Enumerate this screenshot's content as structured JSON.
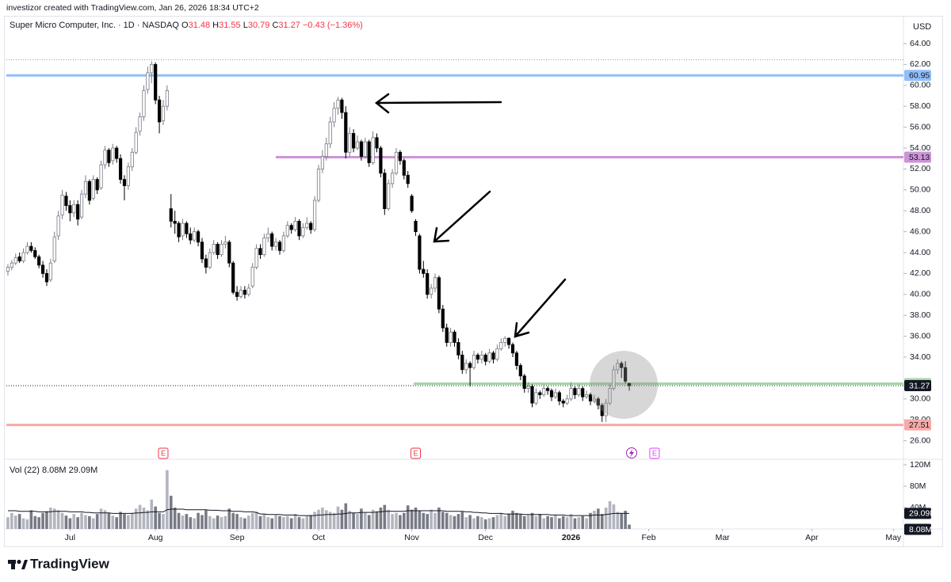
{
  "chart_data": {
    "type": "candlestick",
    "header": "investizor created with TradingView.com, Jan 26, 2026 18:34 UTC+2",
    "currency": "USD",
    "legend": {
      "symbol": "Super Micro Computer, Inc. · 1D · NASDAQ",
      "fields": [
        "O",
        "H",
        "L",
        "C"
      ],
      "change": {
        "value": -0.43,
        "label": "−0.43"
      },
      "change_pct": {
        "value": -1.36,
        "label": "(−1.36%)"
      }
    },
    "up_color": "#ffffff",
    "down_color": "#000000",
    "candles": [
      [
        42.2,
        42.9,
        41.8,
        42.6
      ],
      [
        42.6,
        43.3,
        42.3,
        43.0
      ],
      [
        43.0,
        43.9,
        42.8,
        43.5
      ],
      [
        43.6,
        44.0,
        43.0,
        43.2
      ],
      [
        43.2,
        44.4,
        43.0,
        44.0
      ],
      [
        44.0,
        45.0,
        43.8,
        44.6
      ],
      [
        44.6,
        45.0,
        44.0,
        44.2
      ],
      [
        44.2,
        44.5,
        43.4,
        43.6
      ],
      [
        43.6,
        43.8,
        42.5,
        42.8
      ],
      [
        42.8,
        43.2,
        41.6,
        42.0
      ],
      [
        42.0,
        42.4,
        40.8,
        41.2
      ],
      [
        41.4,
        43.4,
        41.2,
        43.0
      ],
      [
        43.2,
        46.0,
        43.0,
        45.5
      ],
      [
        45.6,
        48.0,
        45.2,
        47.5
      ],
      [
        47.6,
        50.0,
        47.2,
        49.5
      ],
      [
        49.4,
        49.8,
        48.0,
        48.5
      ],
      [
        48.5,
        49.0,
        47.0,
        47.8
      ],
      [
        47.8,
        49.0,
        47.4,
        48.6
      ],
      [
        48.6,
        49.0,
        46.6,
        47.2
      ],
      [
        47.4,
        50.0,
        47.2,
        49.6
      ],
      [
        49.6,
        51.4,
        49.2,
        50.8
      ],
      [
        50.8,
        51.0,
        48.6,
        49.0
      ],
      [
        49.2,
        51.4,
        49.0,
        51.0
      ],
      [
        51.0,
        51.2,
        49.6,
        50.0
      ],
      [
        50.2,
        52.8,
        50.0,
        52.4
      ],
      [
        52.4,
        54.2,
        52.0,
        53.8
      ],
      [
        53.8,
        54.0,
        52.2,
        52.6
      ],
      [
        52.8,
        54.4,
        52.4,
        54.0
      ],
      [
        54.0,
        54.2,
        52.6,
        53.0
      ],
      [
        53.0,
        53.4,
        50.6,
        51.0
      ],
      [
        51.0,
        51.4,
        49.0,
        50.4
      ],
      [
        50.4,
        52.6,
        50.0,
        52.2
      ],
      [
        52.2,
        54.0,
        51.8,
        53.6
      ],
      [
        53.6,
        56.0,
        53.4,
        55.5
      ],
      [
        55.6,
        57.4,
        55.2,
        57.0
      ],
      [
        57.0,
        60.0,
        56.6,
        59.5
      ],
      [
        59.6,
        61.8,
        59.2,
        61.2
      ],
      [
        61.2,
        62.3,
        60.2,
        62.0
      ],
      [
        62.0,
        62.2,
        58.2,
        58.6
      ],
      [
        58.6,
        59.0,
        55.4,
        56.5
      ],
      [
        56.6,
        58.6,
        56.2,
        58.0
      ],
      [
        58.0,
        60.0,
        57.6,
        59.5
      ],
      [
        48.2,
        49.6,
        46.4,
        47.0
      ],
      [
        47.0,
        48.0,
        45.8,
        46.8
      ],
      [
        46.8,
        47.0,
        45.0,
        45.5
      ],
      [
        45.6,
        47.2,
        45.2,
        46.8
      ],
      [
        46.8,
        47.0,
        45.4,
        45.8
      ],
      [
        45.8,
        46.4,
        44.8,
        45.2
      ],
      [
        45.2,
        46.4,
        45.0,
        46.0
      ],
      [
        46.0,
        46.2,
        44.6,
        45.0
      ],
      [
        45.0,
        45.4,
        43.0,
        43.4
      ],
      [
        43.4,
        43.8,
        42.0,
        42.6
      ],
      [
        42.6,
        44.4,
        42.4,
        44.0
      ],
      [
        44.0,
        45.2,
        43.8,
        44.8
      ],
      [
        44.8,
        45.0,
        43.4,
        43.8
      ],
      [
        43.8,
        45.2,
        43.6,
        44.8
      ],
      [
        44.8,
        45.6,
        44.4,
        45.0
      ],
      [
        45.0,
        45.2,
        42.6,
        43.0
      ],
      [
        43.0,
        43.2,
        40.0,
        40.2
      ],
      [
        40.2,
        40.8,
        39.4,
        39.8
      ],
      [
        39.8,
        40.8,
        39.6,
        40.4
      ],
      [
        40.4,
        40.8,
        39.6,
        40.0
      ],
      [
        40.0,
        41.0,
        39.8,
        40.6
      ],
      [
        40.8,
        43.0,
        40.6,
        42.6
      ],
      [
        42.6,
        44.8,
        42.4,
        44.4
      ],
      [
        44.4,
        44.8,
        43.4,
        43.8
      ],
      [
        43.8,
        45.8,
        43.6,
        45.4
      ],
      [
        45.4,
        46.4,
        45.0,
        45.8
      ],
      [
        45.8,
        46.0,
        44.2,
        44.6
      ],
      [
        44.6,
        45.4,
        44.2,
        45.0
      ],
      [
        45.0,
        45.2,
        43.8,
        44.2
      ],
      [
        44.2,
        46.0,
        44.0,
        45.6
      ],
      [
        45.6,
        47.0,
        45.4,
        46.6
      ],
      [
        46.6,
        46.8,
        45.8,
        46.2
      ],
      [
        46.2,
        47.4,
        46.0,
        47.0
      ],
      [
        47.0,
        47.2,
        45.2,
        45.6
      ],
      [
        45.6,
        46.8,
        45.4,
        46.4
      ],
      [
        46.4,
        47.4,
        46.2,
        46.8
      ],
      [
        46.8,
        47.0,
        45.8,
        46.2
      ],
      [
        46.2,
        49.4,
        46.0,
        49.0
      ],
      [
        49.0,
        52.4,
        48.8,
        52.0
      ],
      [
        52.0,
        53.8,
        51.6,
        53.2
      ],
      [
        53.2,
        55.0,
        52.8,
        54.4
      ],
      [
        54.4,
        57.0,
        54.0,
        56.5
      ],
      [
        56.5,
        58.4,
        56.0,
        57.8
      ],
      [
        57.8,
        58.9,
        57.2,
        58.6
      ],
      [
        58.6,
        58.8,
        56.8,
        57.4
      ],
      [
        57.4,
        58.0,
        53.0,
        53.6
      ],
      [
        53.6,
        56.0,
        53.2,
        55.4
      ],
      [
        55.4,
        55.8,
        53.6,
        54.0
      ],
      [
        54.0,
        55.2,
        53.8,
        54.6
      ],
      [
        54.6,
        54.8,
        52.8,
        53.2
      ],
      [
        53.2,
        55.0,
        53.0,
        54.6
      ],
      [
        54.6,
        54.8,
        52.2,
        52.6
      ],
      [
        52.6,
        55.6,
        52.4,
        55.0
      ],
      [
        55.0,
        55.4,
        53.6,
        54.0
      ],
      [
        54.0,
        54.2,
        51.2,
        51.6
      ],
      [
        51.6,
        52.0,
        47.6,
        48.2
      ],
      [
        48.2,
        51.0,
        48.0,
        50.6
      ],
      [
        50.6,
        52.0,
        50.2,
        51.6
      ],
      [
        51.6,
        54.0,
        51.4,
        53.6
      ],
      [
        53.6,
        53.8,
        52.4,
        52.8
      ],
      [
        52.8,
        53.0,
        51.0,
        51.4
      ],
      [
        51.4,
        51.8,
        50.2,
        50.6
      ],
      [
        49.4,
        49.6,
        47.8,
        48.0
      ],
      [
        47.0,
        47.2,
        45.6,
        46.0
      ],
      [
        45.6,
        45.8,
        42.0,
        42.4
      ],
      [
        42.4,
        43.2,
        41.6,
        42.0
      ],
      [
        42.0,
        42.4,
        39.6,
        40.0
      ],
      [
        40.0,
        41.0,
        39.6,
        40.6
      ],
      [
        40.6,
        42.0,
        40.2,
        41.6
      ],
      [
        41.6,
        41.8,
        38.2,
        38.6
      ],
      [
        38.6,
        39.0,
        36.4,
        36.8
      ],
      [
        36.8,
        37.2,
        35.0,
        35.4
      ],
      [
        35.4,
        36.8,
        35.0,
        36.4
      ],
      [
        36.4,
        36.6,
        35.0,
        35.4
      ],
      [
        35.4,
        35.8,
        33.8,
        34.2
      ],
      [
        34.2,
        34.6,
        32.4,
        32.8
      ],
      [
        32.8,
        33.8,
        32.4,
        33.4
      ],
      [
        33.4,
        33.6,
        31.2,
        33.0
      ],
      [
        33.0,
        34.6,
        32.8,
        34.2
      ],
      [
        34.2,
        34.4,
        33.4,
        33.8
      ],
      [
        33.8,
        34.6,
        33.4,
        34.2
      ],
      [
        34.2,
        34.4,
        33.2,
        33.6
      ],
      [
        33.6,
        34.8,
        33.4,
        34.4
      ],
      [
        34.4,
        34.6,
        33.4,
        33.8
      ],
      [
        33.8,
        35.2,
        33.6,
        34.8
      ],
      [
        34.8,
        35.8,
        34.6,
        35.4
      ],
      [
        35.4,
        36.0,
        35.0,
        35.8
      ],
      [
        35.8,
        35.9,
        34.8,
        35.2
      ],
      [
        35.2,
        35.4,
        34.0,
        34.4
      ],
      [
        34.4,
        34.6,
        32.8,
        33.2
      ],
      [
        33.2,
        33.4,
        31.8,
        32.2
      ],
      [
        32.2,
        32.4,
        30.6,
        31.0
      ],
      [
        31.0,
        31.6,
        30.6,
        31.2
      ],
      [
        31.2,
        31.4,
        29.2,
        29.6
      ],
      [
        29.6,
        31.0,
        29.4,
        30.6
      ],
      [
        30.6,
        30.8,
        30.0,
        30.4
      ],
      [
        30.4,
        31.4,
        30.2,
        31.0
      ],
      [
        31.0,
        31.2,
        30.4,
        30.8
      ],
      [
        30.8,
        31.0,
        29.8,
        30.2
      ],
      [
        30.2,
        31.0,
        30.0,
        30.6
      ],
      [
        30.6,
        30.8,
        29.4,
        29.8
      ],
      [
        29.8,
        30.0,
        29.2,
        29.6
      ],
      [
        29.6,
        30.4,
        29.4,
        30.0
      ],
      [
        30.0,
        31.6,
        29.8,
        31.0
      ],
      [
        31.0,
        31.2,
        30.0,
        30.4
      ],
      [
        30.4,
        31.4,
        30.2,
        31.0
      ],
      [
        31.0,
        31.2,
        29.8,
        30.2
      ],
      [
        30.2,
        30.8,
        30.0,
        30.4
      ],
      [
        30.4,
        30.6,
        29.4,
        29.8
      ],
      [
        29.8,
        30.4,
        29.6,
        30.0
      ],
      [
        30.0,
        30.2,
        29.0,
        29.4
      ],
      [
        29.4,
        29.6,
        27.8,
        28.4
      ],
      [
        28.4,
        30.0,
        27.8,
        29.6
      ],
      [
        29.6,
        31.4,
        29.4,
        31.0
      ],
      [
        31.0,
        33.2,
        30.8,
        32.8
      ],
      [
        32.8,
        33.8,
        32.4,
        33.4
      ],
      [
        33.4,
        33.6,
        32.0,
        33.0
      ],
      [
        33.0,
        33.6,
        31.5,
        31.7
      ],
      [
        31.48,
        31.55,
        30.79,
        31.27
      ]
    ],
    "xlim": [
      -0.4,
      230.6
    ],
    "xticks": [
      {
        "value": 16,
        "label": "Jul"
      },
      {
        "value": 38,
        "label": "Aug"
      },
      {
        "value": 59,
        "label": "Sep"
      },
      {
        "value": 80,
        "label": "Oct"
      },
      {
        "value": 104,
        "label": "Nov"
      },
      {
        "value": 123,
        "label": "Dec"
      },
      {
        "value": 145,
        "label": "2026"
      },
      {
        "value": 165,
        "label": "Feb"
      },
      {
        "value": 184,
        "label": "Mar"
      },
      {
        "value": 207,
        "label": "Apr"
      },
      {
        "value": 228,
        "label": "May"
      }
    ],
    "ylim": [
      24.38,
      66.65
    ],
    "yticks": [
      {
        "value": 64,
        "label": "64.00"
      },
      {
        "value": 62,
        "label": "62.00"
      },
      {
        "value": 60,
        "label": "60.00"
      },
      {
        "value": 58,
        "label": "58.00"
      },
      {
        "value": 56,
        "label": "56.00"
      },
      {
        "value": 54,
        "label": "54.00"
      },
      {
        "value": 52,
        "label": "52.00"
      },
      {
        "value": 50,
        "label": "50.00"
      },
      {
        "value": 48,
        "label": "48.00"
      },
      {
        "value": 46,
        "label": "46.00"
      },
      {
        "value": 44,
        "label": "44.00"
      },
      {
        "value": 42,
        "label": "42.00"
      },
      {
        "value": 40,
        "label": "40.00"
      },
      {
        "value": 38,
        "label": "38.00"
      },
      {
        "value": 36,
        "label": "36.00"
      },
      {
        "value": 34,
        "label": "34.00"
      },
      {
        "value": 30,
        "label": "30.00"
      },
      {
        "value": 28,
        "label": "28.00"
      },
      {
        "value": 26,
        "label": "26.00"
      }
    ],
    "levels": [
      {
        "value": 60.95,
        "color": "#90bff9"
      },
      {
        "value": 53.13,
        "color": "#ce93d8"
      },
      {
        "value": 31.46,
        "color": "#a5d6a7"
      },
      {
        "value": 27.51,
        "color": "#f7a9a7"
      }
    ],
    "events": [
      {
        "x": 40,
        "label": "E",
        "color": "#f23645"
      },
      {
        "x": 105,
        "label": "E",
        "color": "#f23645"
      },
      {
        "x": 166.5,
        "label": "E",
        "color": "#e040fb"
      }
    ],
    "volume": {
      "label": "Vol (22)",
      "up_color": "#b2b5be",
      "down_color": "#787b86",
      "ma_color": "#131722",
      "values": [
        22,
        30,
        25,
        28,
        20,
        18,
        35,
        24,
        22,
        30,
        33,
        40,
        38,
        35,
        30,
        25,
        20,
        28,
        22,
        30,
        26,
        24,
        20,
        28,
        38,
        35,
        30,
        25,
        22,
        32,
        28,
        26,
        30,
        38,
        45,
        40,
        35,
        55,
        42,
        30,
        28,
        110,
        62,
        40,
        30,
        25,
        28,
        22,
        20,
        30,
        26,
        35,
        24,
        20,
        25,
        22,
        24,
        38,
        30,
        28,
        22,
        20,
        25,
        30,
        32,
        24,
        28,
        22,
        20,
        26,
        24,
        22,
        24,
        20,
        28,
        22,
        20,
        24,
        26,
        32,
        36,
        40,
        35,
        32,
        30,
        42,
        36,
        48,
        34,
        30,
        28,
        38,
        30,
        26,
        36,
        32,
        40,
        45,
        36,
        28,
        30,
        26,
        30,
        44,
        36,
        40,
        34,
        30,
        28,
        36,
        30,
        40,
        32,
        30,
        26,
        24,
        28,
        32,
        22,
        26,
        20,
        24,
        22,
        18,
        20,
        22,
        26,
        30,
        24,
        28,
        34,
        30,
        28,
        24,
        26,
        30,
        24,
        28,
        20,
        24,
        22,
        26,
        20,
        24,
        22,
        28,
        20,
        22,
        24,
        20,
        30,
        34,
        38,
        28,
        40,
        52,
        46,
        32,
        30,
        34,
        8.08
      ],
      "ma": [
        34,
        34,
        34,
        33,
        33,
        33,
        33,
        33,
        32,
        32,
        32,
        32,
        33,
        33,
        33,
        33,
        32,
        32,
        32,
        32,
        31,
        31,
        30,
        30,
        30,
        30,
        30,
        29,
        29,
        29,
        29,
        29,
        29,
        30,
        30,
        31,
        31,
        32,
        32,
        32,
        32,
        36,
        37,
        37,
        37,
        37,
        36,
        36,
        36,
        36,
        36,
        36,
        35,
        35,
        35,
        34,
        34,
        34,
        33,
        33,
        33,
        32,
        32,
        32,
        31,
        28,
        28,
        27,
        27,
        27,
        27,
        26,
        26,
        26,
        26,
        25,
        25,
        25,
        25,
        25,
        26,
        26,
        27,
        27,
        27,
        28,
        28,
        29,
        30,
        30,
        30,
        31,
        31,
        31,
        31,
        32,
        32,
        33,
        33,
        33,
        33,
        33,
        33,
        34,
        34,
        34,
        34,
        34,
        34,
        34,
        34,
        34,
        34,
        33,
        33,
        33,
        33,
        33,
        32,
        32,
        31,
        31,
        30,
        30,
        29,
        29,
        29,
        29,
        28,
        28,
        28,
        28,
        28,
        27,
        27,
        27,
        27,
        27,
        27,
        27,
        26,
        26,
        26,
        26,
        25,
        25,
        25,
        25,
        25,
        25,
        25,
        26,
        26,
        26,
        27,
        28,
        29,
        29,
        29,
        29,
        29.09
      ],
      "last_labels": {
        "volume": "8.08M",
        "ma": "29.09M"
      },
      "ylim": [
        0,
        127.4
      ],
      "yticks": [
        {
          "value": 120,
          "label": "120M"
        },
        {
          "value": 80,
          "label": "80M"
        },
        {
          "value": 40,
          "label": "40M"
        }
      ]
    },
    "footer": "TradingView"
  }
}
